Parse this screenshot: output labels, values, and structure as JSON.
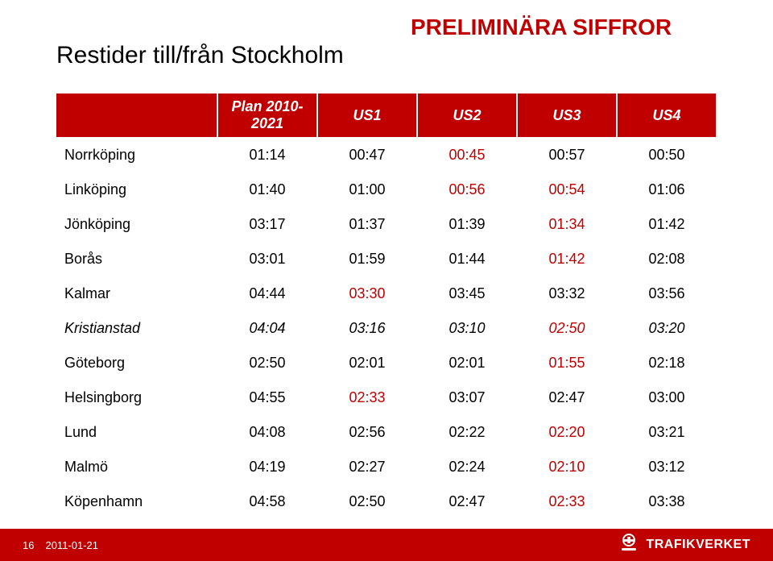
{
  "header": {
    "title": "Restider till/från Stockholm",
    "preliminary_label": "PRELIMINÄRA SIFFROR"
  },
  "table": {
    "columns": [
      {
        "label": "",
        "align": "left"
      },
      {
        "label": "Plan 2010-2021",
        "align": "center"
      },
      {
        "label": "US1",
        "align": "center"
      },
      {
        "label": "US2",
        "align": "center"
      },
      {
        "label": "US3",
        "align": "center"
      },
      {
        "label": "US4",
        "align": "center"
      }
    ],
    "header_bg": "#c00000",
    "header_fg": "#ffffff",
    "highlight_color": "#c00000",
    "rows": [
      {
        "label": "Norrköping",
        "italic": false,
        "cells": [
          {
            "v": "01:14"
          },
          {
            "v": "00:47"
          },
          {
            "v": "00:45",
            "hl": true
          },
          {
            "v": "00:57"
          },
          {
            "v": "00:50"
          }
        ]
      },
      {
        "label": "Linköping",
        "italic": false,
        "cells": [
          {
            "v": "01:40"
          },
          {
            "v": "01:00"
          },
          {
            "v": "00:56",
            "hl": true
          },
          {
            "v": "00:54",
            "hl": true
          },
          {
            "v": "01:06"
          }
        ]
      },
      {
        "label": "Jönköping",
        "italic": false,
        "cells": [
          {
            "v": "03:17"
          },
          {
            "v": "01:37"
          },
          {
            "v": "01:39"
          },
          {
            "v": "01:34",
            "hl": true
          },
          {
            "v": "01:42"
          }
        ]
      },
      {
        "label": "Borås",
        "italic": false,
        "cells": [
          {
            "v": "03:01"
          },
          {
            "v": "01:59"
          },
          {
            "v": "01:44"
          },
          {
            "v": "01:42",
            "hl": true
          },
          {
            "v": "02:08"
          }
        ]
      },
      {
        "label": "Kalmar",
        "italic": false,
        "cells": [
          {
            "v": "04:44"
          },
          {
            "v": "03:30",
            "hl": true
          },
          {
            "v": "03:45"
          },
          {
            "v": "03:32"
          },
          {
            "v": "03:56"
          }
        ]
      },
      {
        "label": "Kristianstad",
        "italic": true,
        "cells": [
          {
            "v": "04:04"
          },
          {
            "v": "03:16"
          },
          {
            "v": "03:10"
          },
          {
            "v": "02:50",
            "hl": true
          },
          {
            "v": "03:20"
          }
        ]
      },
      {
        "label": "Göteborg",
        "italic": false,
        "cells": [
          {
            "v": "02:50"
          },
          {
            "v": "02:01"
          },
          {
            "v": "02:01"
          },
          {
            "v": "01:55",
            "hl": true
          },
          {
            "v": "02:18"
          }
        ]
      },
      {
        "label": "Helsingborg",
        "italic": false,
        "cells": [
          {
            "v": "04:55"
          },
          {
            "v": "02:33",
            "hl": true
          },
          {
            "v": "03:07"
          },
          {
            "v": "02:47"
          },
          {
            "v": "03:00"
          }
        ]
      },
      {
        "label": "Lund",
        "italic": false,
        "cells": [
          {
            "v": "04:08"
          },
          {
            "v": "02:56"
          },
          {
            "v": "02:22"
          },
          {
            "v": "02:20",
            "hl": true
          },
          {
            "v": "03:21"
          }
        ]
      },
      {
        "label": "Malmö",
        "italic": false,
        "cells": [
          {
            "v": "04:19"
          },
          {
            "v": "02:27"
          },
          {
            "v": "02:24"
          },
          {
            "v": "02:10",
            "hl": true
          },
          {
            "v": "03:12"
          }
        ]
      },
      {
        "label": "Köpenhamn",
        "italic": false,
        "cells": [
          {
            "v": "04:58"
          },
          {
            "v": "02:50"
          },
          {
            "v": "02:47"
          },
          {
            "v": "02:33",
            "hl": true
          },
          {
            "v": "03:38"
          }
        ]
      }
    ]
  },
  "footer": {
    "page_number": "16",
    "date": "2011-01-21",
    "brand": "TRAFIKVERKET"
  }
}
